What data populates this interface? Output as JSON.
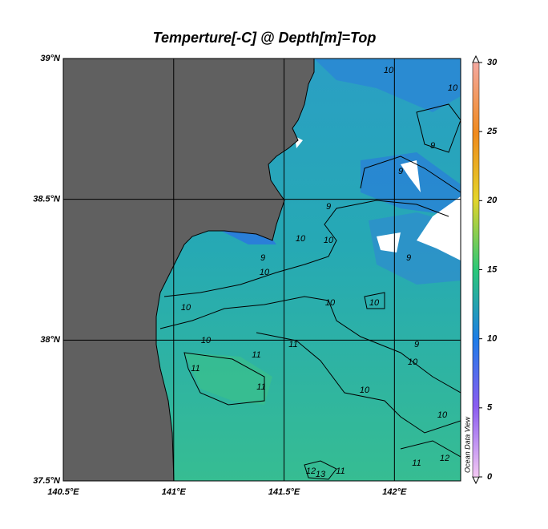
{
  "chart_data": {
    "type": "map",
    "title": "Temperture[-C] @ Depth[m]=Top",
    "watermark": "Ocean Data View",
    "xlim": [
      140.5,
      142.3
    ],
    "ylim": [
      37.5,
      39
    ],
    "xticks": [
      {
        "value": 140.5,
        "label": "140.5°E"
      },
      {
        "value": 141,
        "label": "141°E"
      },
      {
        "value": 141.5,
        "label": "141.5°E"
      },
      {
        "value": 142,
        "label": "142°E"
      }
    ],
    "yticks": [
      {
        "value": 37.5,
        "label": "37.5°N"
      },
      {
        "value": 38,
        "label": "38°N"
      },
      {
        "value": 38.5,
        "label": "38.5°N"
      },
      {
        "value": 39,
        "label": "39°N"
      }
    ],
    "grid": true,
    "colorbar": {
      "lim": [
        0,
        30
      ],
      "ticks": [
        0,
        5,
        10,
        15,
        20,
        25,
        30
      ]
    },
    "contour_labels": [
      10,
      10,
      9,
      9,
      9,
      10,
      10,
      9,
      10,
      9,
      10,
      10,
      10,
      10,
      9,
      11,
      11,
      10,
      11,
      11,
      10,
      10,
      12,
      13,
      11,
      11,
      12
    ]
  }
}
